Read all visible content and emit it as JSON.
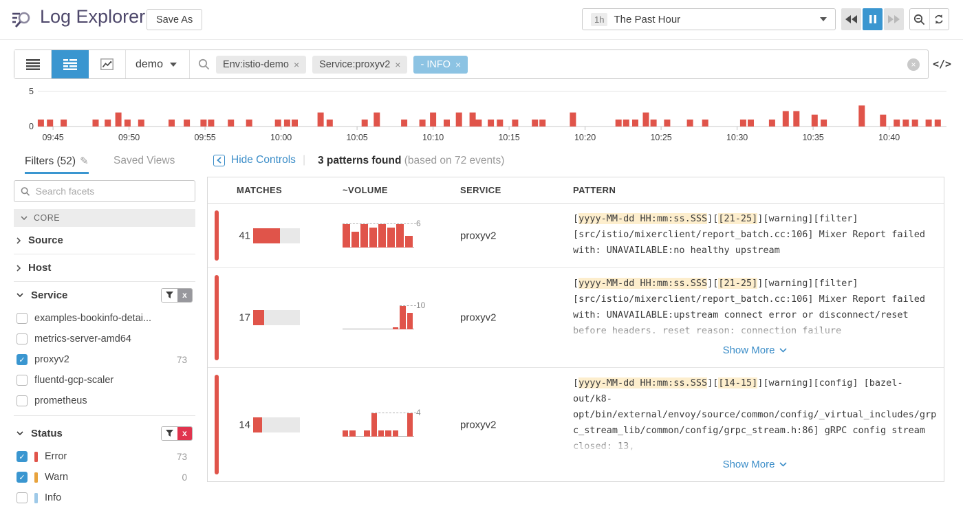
{
  "header": {
    "title": "Log Explorer",
    "save_as_label": "Save As",
    "time_range": {
      "badge": "1h",
      "label": "The Past Hour"
    }
  },
  "icons": {
    "pencil": "✎",
    "code_toggle": "</>",
    "clear": "×",
    "pill_close": "×",
    "check": "✓",
    "group_close": "x",
    "divider": "|"
  },
  "search": {
    "scope": "demo",
    "pills": [
      {
        "label": "Env:istio-demo",
        "style": "gray"
      },
      {
        "label": "Service:proxyv2",
        "style": "gray"
      },
      {
        "label": "- INFO",
        "style": "blue"
      }
    ]
  },
  "tabs": {
    "filters": "Filters (52)",
    "saved_views": "Saved Views"
  },
  "controls": {
    "hide_label": "Hide Controls",
    "patterns_found": "3 patterns found",
    "based_on": "(based on 72 events)"
  },
  "sidebar": {
    "search_placeholder": "Search facets",
    "group_label": "CORE",
    "collapsed_facets": [
      "Source",
      "Host"
    ],
    "service": {
      "title": "Service",
      "items": [
        {
          "label": "examples-bookinfo-detai...",
          "checked": false,
          "count": ""
        },
        {
          "label": "metrics-server-amd64",
          "checked": false,
          "count": ""
        },
        {
          "label": "proxyv2",
          "checked": true,
          "count": "73"
        },
        {
          "label": "fluentd-gcp-scaler",
          "checked": false,
          "count": ""
        },
        {
          "label": "prometheus",
          "checked": false,
          "count": ""
        }
      ]
    },
    "status": {
      "title": "Status",
      "items": [
        {
          "label": "Error",
          "checked": true,
          "color": "#e0544a",
          "count": "73"
        },
        {
          "label": "Warn",
          "checked": true,
          "color": "#e8a33d",
          "count": "0"
        },
        {
          "label": "Info",
          "checked": false,
          "color": "#9ec9e8",
          "count": ""
        }
      ]
    }
  },
  "table": {
    "columns": [
      "MATCHES",
      "~VOLUME",
      "SERVICE",
      "PATTERN"
    ],
    "show_more_label": "Show More",
    "rows": [
      {
        "matches": "41",
        "fill_pct": 57,
        "service": "proxyv2",
        "truncated": false,
        "segments": [
          {
            "t": "[",
            "h": false
          },
          {
            "t": "yyyy-MM-dd HH:mm:ss.SSS",
            "h": true
          },
          {
            "t": "][",
            "h": false
          },
          {
            "t": "[21-25]",
            "h": true
          },
          {
            "t": "][warning][filter][src/istio/mixerclient/report_batch.cc:106] Mixer Report failed with: UNAVAILABLE:no healthy upstream",
            "h": false
          }
        ]
      },
      {
        "matches": "17",
        "fill_pct": 24,
        "service": "proxyv2",
        "truncated": true,
        "segments": [
          {
            "t": "[",
            "h": false
          },
          {
            "t": "yyyy-MM-dd HH:mm:ss.SSS",
            "h": true
          },
          {
            "t": "][",
            "h": false
          },
          {
            "t": "[21-25]",
            "h": true
          },
          {
            "t": "][warning][filter][src/istio/mixerclient/report_batch.cc:106] Mixer Report failed with: UNAVAILABLE:upstream connect error or disconnect/reset before headers. reset reason: connection failure",
            "h": false
          }
        ]
      },
      {
        "matches": "14",
        "fill_pct": 19,
        "service": "proxyv2",
        "truncated": true,
        "segments": [
          {
            "t": "[",
            "h": false
          },
          {
            "t": "yyyy-MM-dd HH:mm:ss.SSS",
            "h": true
          },
          {
            "t": "][",
            "h": false
          },
          {
            "t": "[14-15]",
            "h": true
          },
          {
            "t": "][warning][config] [bazel-out/k8-opt/bin/external/envoy/source/common/config/_virtual_includes/grpc_stream_lib/common/config/grpc_stream.h:86] gRPC config stream closed: 13,",
            "h": false
          }
        ]
      }
    ]
  },
  "chart_data": {
    "timeline": {
      "type": "bar",
      "title": "",
      "ylim": [
        0,
        5
      ],
      "y_ticks": [
        "0",
        "5"
      ],
      "bar_color": "#e0544a",
      "grid": true,
      "time_origin": "09:44",
      "x_ticks": [
        {
          "m": 1,
          "label": "09:45"
        },
        {
          "m": 6,
          "label": "09:50"
        },
        {
          "m": 11,
          "label": "09:55"
        },
        {
          "m": 16,
          "label": "10:00"
        },
        {
          "m": 21,
          "label": "10:05"
        },
        {
          "m": 26,
          "label": "10:10"
        },
        {
          "m": 31,
          "label": "10:15"
        },
        {
          "m": 36,
          "label": "10:20"
        },
        {
          "m": 41,
          "label": "10:25"
        },
        {
          "m": 46,
          "label": "10:30"
        },
        {
          "m": 51,
          "label": "10:35"
        },
        {
          "m": 56,
          "label": "10:40"
        }
      ],
      "bars": [
        [
          0.2,
          1
        ],
        [
          0.8,
          1
        ],
        [
          1.7,
          1
        ],
        [
          3.8,
          1
        ],
        [
          4.6,
          1
        ],
        [
          5.3,
          2
        ],
        [
          5.9,
          1
        ],
        [
          6.8,
          1
        ],
        [
          8.8,
          1
        ],
        [
          9.8,
          1
        ],
        [
          10.9,
          1
        ],
        [
          11.4,
          1
        ],
        [
          12.7,
          1
        ],
        [
          13.9,
          1
        ],
        [
          15.8,
          1
        ],
        [
          16.4,
          1
        ],
        [
          16.9,
          1
        ],
        [
          18.6,
          2
        ],
        [
          19.2,
          1
        ],
        [
          21.5,
          1
        ],
        [
          22.3,
          2
        ],
        [
          24.1,
          1
        ],
        [
          25.3,
          1
        ],
        [
          26,
          2
        ],
        [
          26.9,
          1
        ],
        [
          27.7,
          2
        ],
        [
          28.6,
          2
        ],
        [
          29,
          1
        ],
        [
          29.8,
          1
        ],
        [
          30.4,
          1
        ],
        [
          31.4,
          1
        ],
        [
          32.7,
          1
        ],
        [
          33.2,
          1
        ],
        [
          35.2,
          2
        ],
        [
          38.2,
          1
        ],
        [
          38.7,
          1
        ],
        [
          39.3,
          1
        ],
        [
          40,
          2
        ],
        [
          40.5,
          1
        ],
        [
          41.4,
          1
        ],
        [
          42.9,
          1
        ],
        [
          43.9,
          1
        ],
        [
          46.4,
          1
        ],
        [
          46.9,
          1
        ],
        [
          48.3,
          1
        ],
        [
          49.2,
          2.2
        ],
        [
          49.9,
          2.2
        ],
        [
          51.1,
          1.7
        ],
        [
          51.7,
          1
        ],
        [
          54.2,
          3
        ],
        [
          55.6,
          1.7
        ],
        [
          56.5,
          1
        ],
        [
          57.1,
          1
        ],
        [
          57.7,
          1
        ],
        [
          58.6,
          1
        ],
        [
          59.2,
          1
        ]
      ]
    },
    "row_volumes": [
      {
        "type": "bar",
        "values": [
          6,
          4,
          6,
          5,
          6,
          5,
          6,
          3
        ],
        "peak": 6,
        "peak_label": "6"
      },
      {
        "type": "bar",
        "values": [
          0,
          0,
          0,
          0,
          0,
          0,
          0,
          1,
          10,
          7
        ],
        "peak": 10,
        "peak_label": "10"
      },
      {
        "type": "bar",
        "values": [
          1,
          1,
          0,
          1,
          4,
          1,
          1,
          1,
          0,
          4
        ],
        "peak": 4,
        "peak_label": "4"
      }
    ]
  }
}
